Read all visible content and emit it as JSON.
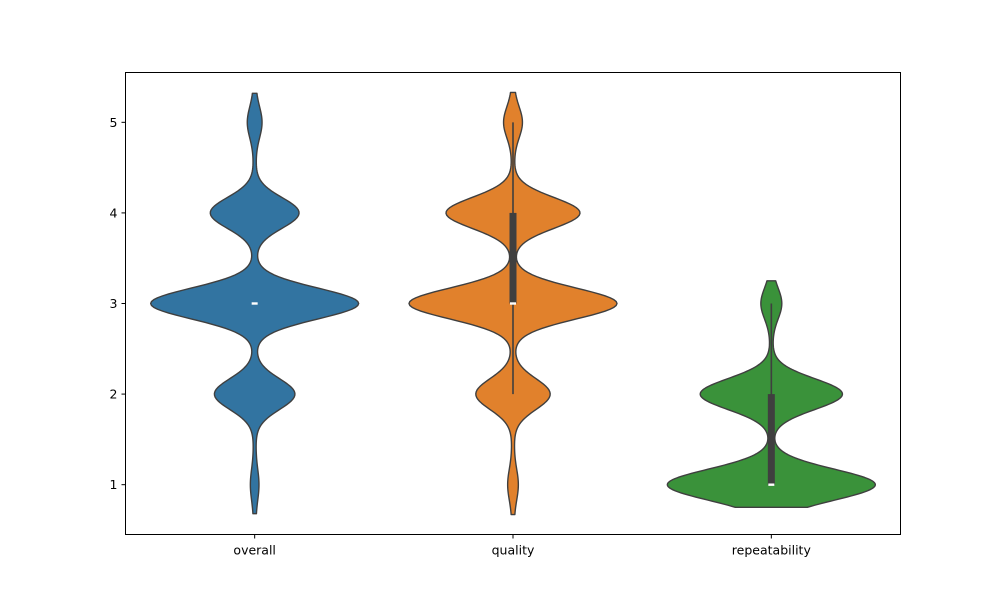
{
  "chart_data": {
    "type": "violin",
    "title": "",
    "xlabel": "",
    "ylabel": "",
    "ylim": [
      0.45,
      5.55
    ],
    "y_ticks": [
      1,
      2,
      3,
      4,
      5
    ],
    "y_tick_labels": [
      "1",
      "2",
      "3",
      "4",
      "5"
    ],
    "grid": false,
    "categories": [
      "overall",
      "quality",
      "repeatability"
    ],
    "series": [
      {
        "category": "overall",
        "color": "#3274a1",
        "range": [
          0.68,
          5.32
        ],
        "density_levels": {
          "1": 0.03,
          "2": 0.38,
          "3": 1.0,
          "4": 0.42,
          "5": 0.06
        },
        "box": {
          "q1": 3.0,
          "median": 3.0,
          "q3": 3.0,
          "whisker_low": 3.0,
          "whisker_high": 3.0
        }
      },
      {
        "category": "quality",
        "color": "#e1812c",
        "range": [
          0.67,
          5.33
        ],
        "density_levels": {
          "1": 0.04,
          "2": 0.35,
          "3": 1.0,
          "4": 0.64,
          "5": 0.08
        },
        "box": {
          "q1": 3.0,
          "median": 3.0,
          "q3": 4.0,
          "whisker_low": 2.0,
          "whisker_high": 5.0
        }
      },
      {
        "category": "repeatability",
        "color": "#3a923a",
        "range": [
          0.75,
          3.25
        ],
        "density_levels": {
          "1": 1.0,
          "2": 0.68,
          "3": 0.09
        },
        "box": {
          "q1": 1.0,
          "median": 1.0,
          "q3": 2.0,
          "whisker_low": 1.0,
          "whisker_high": 3.0
        }
      }
    ]
  }
}
